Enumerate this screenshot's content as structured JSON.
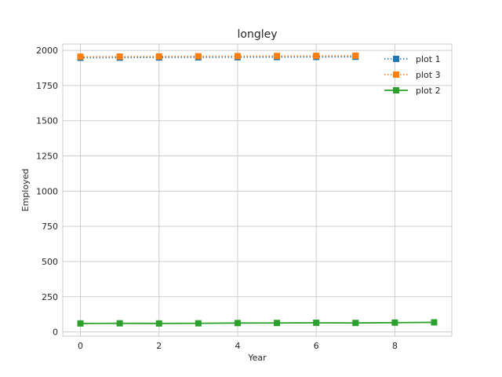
{
  "chart_data": {
    "type": "line",
    "title": "longley",
    "xlabel": "Year",
    "ylabel": "Employed",
    "xlim": [
      -0.45,
      9.45
    ],
    "ylim": [
      -30,
      2045
    ],
    "grid": true,
    "legend_position": "top-right",
    "x_ticks": [
      0,
      2,
      4,
      6,
      8
    ],
    "y_ticks": [
      0,
      250,
      500,
      750,
      1000,
      1250,
      1500,
      1750,
      2000
    ],
    "series": [
      {
        "name": "plot 1",
        "color": "#1f77b4",
        "line_style": "dotted",
        "marker": "square",
        "x": [
          0,
          1,
          2,
          3,
          4,
          5,
          6,
          7
        ],
        "y": [
          1947,
          1948,
          1949,
          1950,
          1951,
          1952,
          1953,
          1954
        ]
      },
      {
        "name": "plot 3",
        "color": "#ff7f0e",
        "line_style": "dotted",
        "marker": "square",
        "x": [
          0,
          1,
          2,
          3,
          4,
          5,
          6,
          7
        ],
        "y": [
          1955,
          1956,
          1957,
          1958,
          1959,
          1960,
          1961,
          1962
        ]
      },
      {
        "name": "plot 2",
        "color": "#2ca02c",
        "line_style": "solid",
        "marker": "square",
        "x": [
          0,
          1,
          2,
          3,
          4,
          5,
          6,
          7,
          8,
          9
        ],
        "y": [
          60.3,
          61.1,
          60.2,
          61.2,
          63.2,
          63.6,
          65.0,
          63.8,
          66.0,
          67.9
        ]
      }
    ]
  }
}
